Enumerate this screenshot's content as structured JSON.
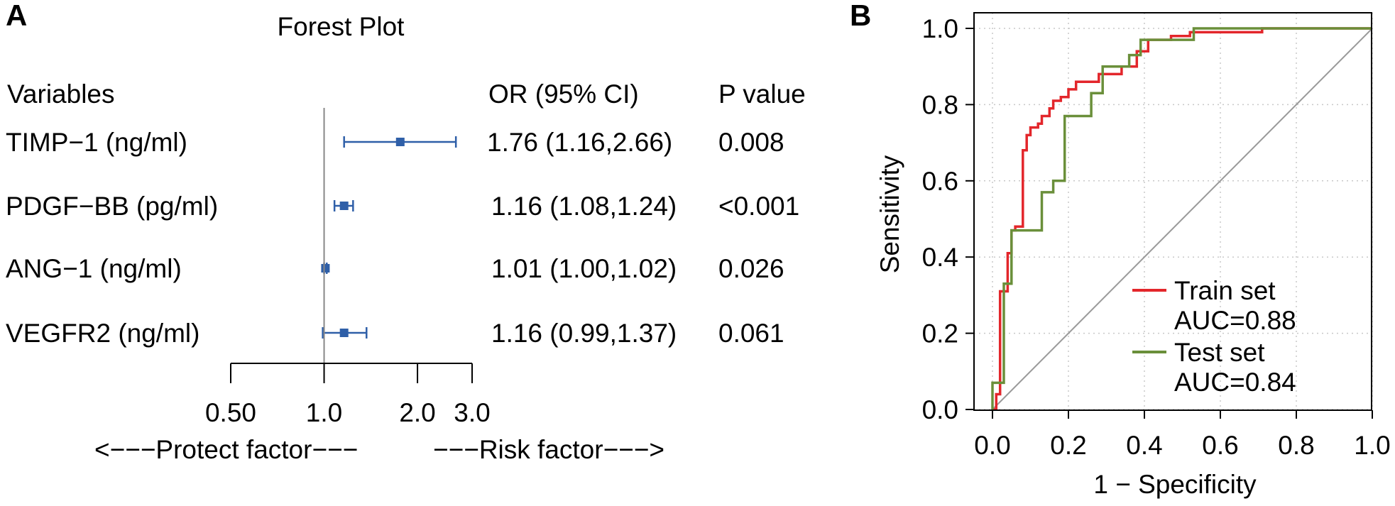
{
  "chart_data": [
    {
      "type": "forest",
      "panel_label": "A",
      "title": "Forest Plot",
      "column_headers": {
        "variable": "Variables",
        "or": "OR (95% CI)",
        "p": "P value"
      },
      "rows": [
        {
          "variable": "TIMP−1 (ng/ml)",
          "or": 1.76,
          "lo": 1.16,
          "hi": 2.66,
          "or_text": "1.76 (1.16,2.66)",
          "p_text": "0.008"
        },
        {
          "variable": "PDGF−BB (pg/ml)",
          "or": 1.16,
          "lo": 1.08,
          "hi": 1.24,
          "or_text": "1.16 (1.08,1.24)",
          "p_text": "<0.001"
        },
        {
          "variable": "ANG−1 (ng/ml)",
          "or": 1.01,
          "lo": 1.0,
          "hi": 1.02,
          "or_text": "1.01 (1.00,1.02)",
          "p_text": "0.026"
        },
        {
          "variable": "VEGFR2 (ng/ml)",
          "or": 1.16,
          "lo": 0.99,
          "hi": 1.37,
          "or_text": "1.16 (0.99,1.37)",
          "p_text": "0.061"
        }
      ],
      "x_scale": "log",
      "xlim": [
        0.5,
        3.0
      ],
      "reference_line": 1.0,
      "x_ticks": [
        0.5,
        1.0,
        2.0,
        3.0
      ],
      "x_tick_labels": [
        "0.50",
        "1.0",
        "2.0",
        "3.0"
      ],
      "left_annotation": "<−−−Protect factor−−−",
      "right_annotation": "−−−Risk factor−−−>",
      "marker_color": "#2f5fa8"
    },
    {
      "type": "line",
      "subtype": "roc-step",
      "panel_label": "B",
      "xlabel": "1 − Specificity",
      "ylabel": "Sensitivity",
      "xlim": [
        0,
        1
      ],
      "ylim": [
        0,
        1
      ],
      "x_ticks": [
        0.0,
        0.2,
        0.4,
        0.6,
        0.8,
        1.0
      ],
      "x_tick_labels": [
        "0.0",
        "0.2",
        "0.4",
        "0.6",
        "0.8",
        "1.0"
      ],
      "y_ticks": [
        0.0,
        0.2,
        0.4,
        0.6,
        0.8,
        1.0
      ],
      "y_tick_labels": [
        "0.0",
        "0.2",
        "0.4",
        "0.6",
        "0.8",
        "1.0"
      ],
      "grid": true,
      "diagonal": true,
      "legend_position": "bottom-right",
      "series": [
        {
          "name": "Train set",
          "auc_label": "AUC=0.88",
          "color": "#e3262b",
          "points": [
            [
              0,
              0
            ],
            [
              0.01,
              0
            ],
            [
              0.01,
              0.04
            ],
            [
              0.02,
              0.04
            ],
            [
              0.02,
              0.31
            ],
            [
              0.04,
              0.31
            ],
            [
              0.04,
              0.41
            ],
            [
              0.05,
              0.41
            ],
            [
              0.05,
              0.47
            ],
            [
              0.06,
              0.47
            ],
            [
              0.06,
              0.48
            ],
            [
              0.08,
              0.48
            ],
            [
              0.08,
              0.68
            ],
            [
              0.09,
              0.68
            ],
            [
              0.09,
              0.72
            ],
            [
              0.1,
              0.72
            ],
            [
              0.1,
              0.74
            ],
            [
              0.12,
              0.74
            ],
            [
              0.12,
              0.75
            ],
            [
              0.13,
              0.75
            ],
            [
              0.13,
              0.77
            ],
            [
              0.15,
              0.77
            ],
            [
              0.15,
              0.79
            ],
            [
              0.16,
              0.79
            ],
            [
              0.16,
              0.81
            ],
            [
              0.18,
              0.81
            ],
            [
              0.18,
              0.82
            ],
            [
              0.2,
              0.82
            ],
            [
              0.2,
              0.84
            ],
            [
              0.22,
              0.84
            ],
            [
              0.22,
              0.86
            ],
            [
              0.28,
              0.86
            ],
            [
              0.28,
              0.88
            ],
            [
              0.34,
              0.88
            ],
            [
              0.34,
              0.9
            ],
            [
              0.38,
              0.9
            ],
            [
              0.38,
              0.94
            ],
            [
              0.41,
              0.94
            ],
            [
              0.41,
              0.97
            ],
            [
              0.47,
              0.97
            ],
            [
              0.47,
              0.98
            ],
            [
              0.52,
              0.98
            ],
            [
              0.52,
              0.99
            ],
            [
              0.71,
              0.99
            ],
            [
              0.71,
              1.0
            ],
            [
              1.0,
              1.0
            ]
          ]
        },
        {
          "name": "Test set",
          "auc_label": "AUC=0.84",
          "color": "#6a8f3a",
          "points": [
            [
              0,
              0
            ],
            [
              0,
              0.07
            ],
            [
              0.03,
              0.07
            ],
            [
              0.03,
              0.33
            ],
            [
              0.05,
              0.33
            ],
            [
              0.05,
              0.47
            ],
            [
              0.13,
              0.47
            ],
            [
              0.13,
              0.57
            ],
            [
              0.16,
              0.57
            ],
            [
              0.16,
              0.6
            ],
            [
              0.19,
              0.6
            ],
            [
              0.19,
              0.77
            ],
            [
              0.26,
              0.77
            ],
            [
              0.26,
              0.83
            ],
            [
              0.29,
              0.83
            ],
            [
              0.29,
              0.9
            ],
            [
              0.36,
              0.9
            ],
            [
              0.36,
              0.93
            ],
            [
              0.39,
              0.93
            ],
            [
              0.39,
              0.97
            ],
            [
              0.53,
              0.97
            ],
            [
              0.53,
              1.0
            ],
            [
              1.0,
              1.0
            ]
          ]
        }
      ]
    }
  ]
}
